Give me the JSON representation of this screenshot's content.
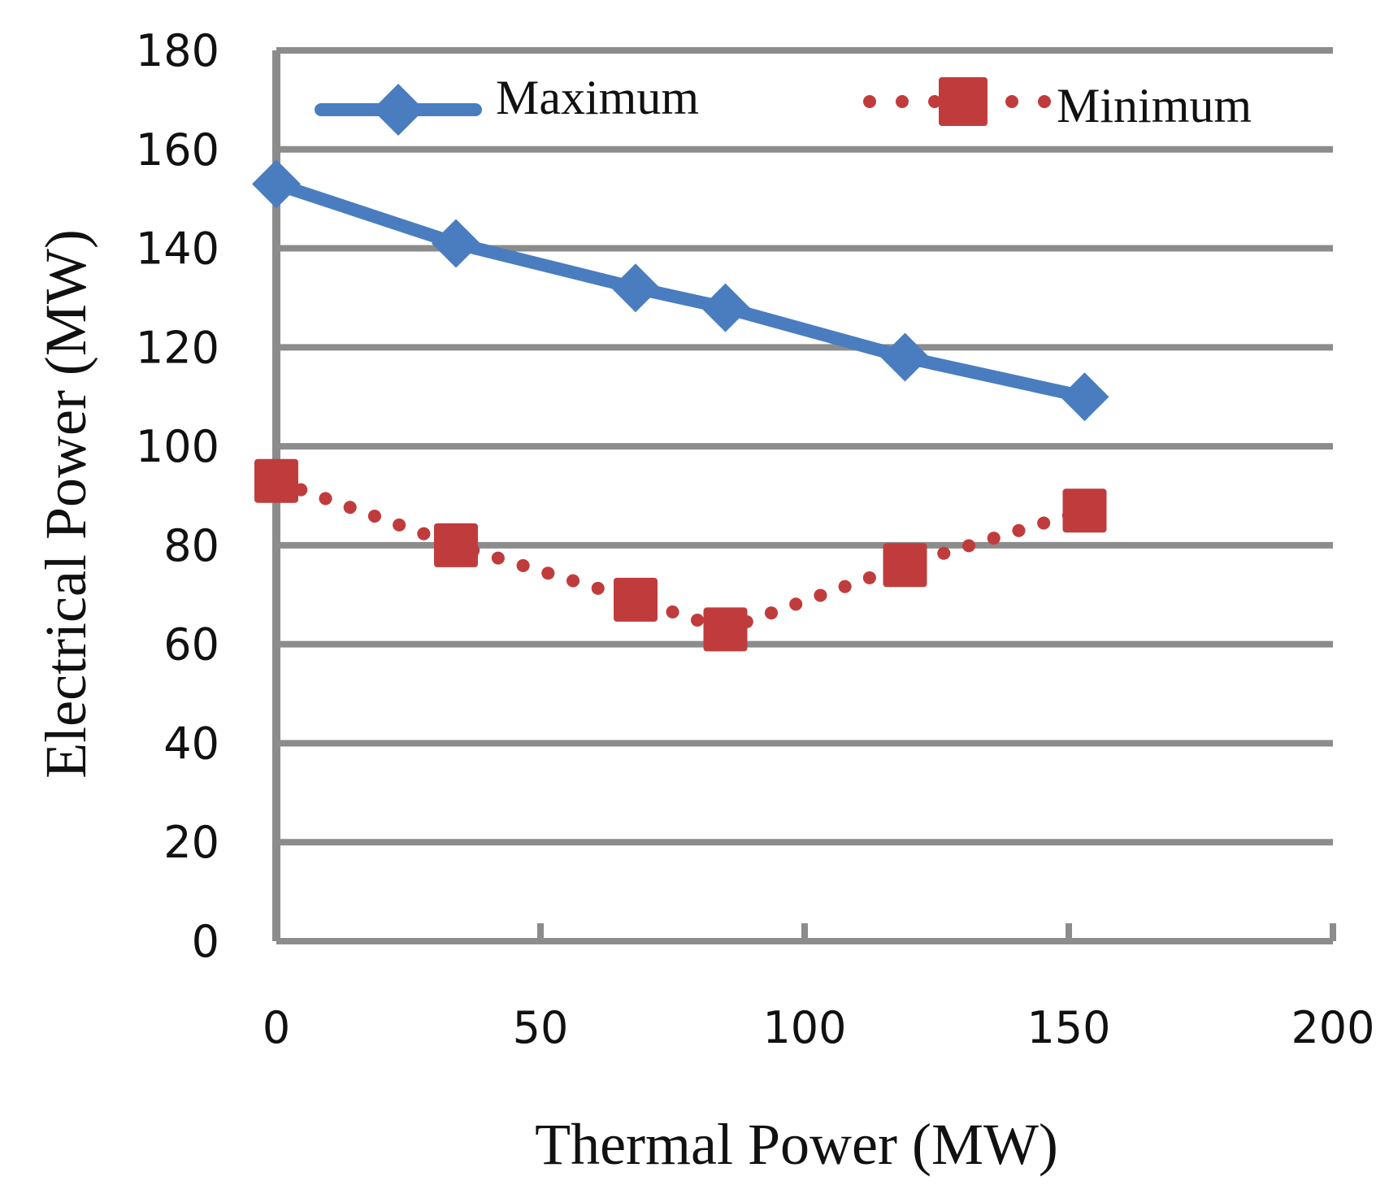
{
  "chart_data": {
    "type": "line",
    "title": "",
    "xlabel": "Thermal Power (MW)",
    "ylabel": "Electrical Power (MW)",
    "xlim": [
      0,
      200
    ],
    "ylim": [
      0,
      180
    ],
    "xticks": [
      "0",
      "50",
      "100",
      "150",
      "200"
    ],
    "yticks": [
      "0",
      "20",
      "40",
      "60",
      "80",
      "100",
      "120",
      "140",
      "160",
      "180"
    ],
    "grid": "horizontal",
    "legend_position": "top",
    "series": [
      {
        "name": "Maximum",
        "color": "#4a7dbf",
        "line_style": "solid",
        "marker": "diamond",
        "x": [
          0,
          34,
          68,
          85,
          119,
          153
        ],
        "y": [
          153,
          141,
          132,
          128,
          118,
          110
        ]
      },
      {
        "name": "Minimum",
        "color": "#c03c3c",
        "line_style": "dotted",
        "marker": "square",
        "x": [
          0,
          34,
          68,
          85,
          119,
          153
        ],
        "y": [
          93,
          80,
          69,
          63,
          76,
          87
        ]
      }
    ]
  }
}
